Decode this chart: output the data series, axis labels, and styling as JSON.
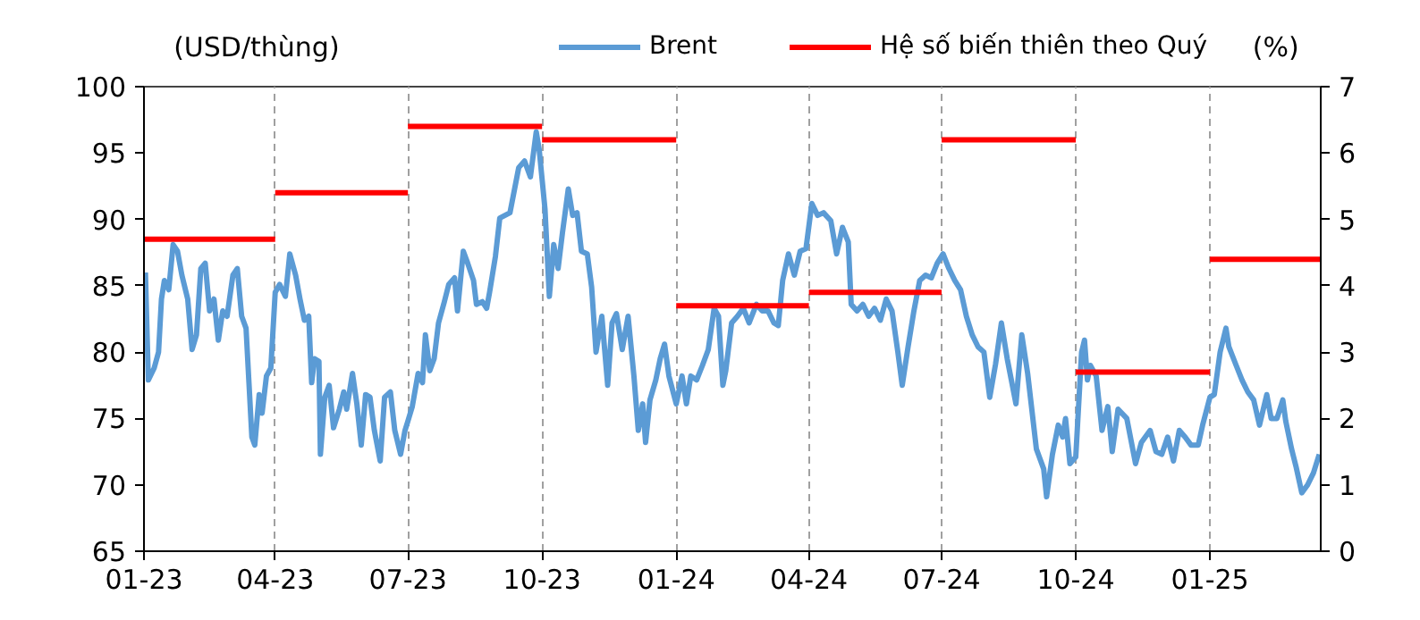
{
  "chart_data": {
    "type": "line",
    "ylabel": "(USD/thùng)",
    "y2label": "(%)",
    "xlim": [
      "2023-01-01",
      "2025-03-18"
    ],
    "xticks": [
      {
        "value": "2023-01-01",
        "label": "01-23"
      },
      {
        "value": "2023-04-01",
        "label": "04-23"
      },
      {
        "value": "2023-07-01",
        "label": "07-23"
      },
      {
        "value": "2023-10-01",
        "label": "10-23"
      },
      {
        "value": "2024-01-01",
        "label": "01-24"
      },
      {
        "value": "2024-04-01",
        "label": "04-24"
      },
      {
        "value": "2024-07-01",
        "label": "07-24"
      },
      {
        "value": "2024-10-01",
        "label": "10-24"
      },
      {
        "value": "2025-01-01",
        "label": "01-25"
      }
    ],
    "ylim": [
      65,
      100
    ],
    "yticks": [
      65,
      70,
      75,
      80,
      85,
      90,
      95,
      100
    ],
    "y2lim": [
      0,
      7
    ],
    "y2ticks": [
      0,
      1,
      2,
      3,
      4,
      5,
      6,
      7
    ],
    "grid": "x",
    "legend": "top",
    "line_style": "solid",
    "series": [
      {
        "name": "Brent",
        "color": "#5b9bd5",
        "x": [
          "2023-01-02",
          "2023-01-04",
          "2023-01-08",
          "2023-01-11",
          "2023-01-13",
          "2023-01-15",
          "2023-01-18",
          "2023-01-21",
          "2023-01-24",
          "2023-01-27",
          "2023-01-31",
          "2023-02-03",
          "2023-02-06",
          "2023-02-09",
          "2023-02-12",
          "2023-02-15",
          "2023-02-18",
          "2023-02-21",
          "2023-02-24",
          "2023-02-27",
          "2023-03-03",
          "2023-03-06",
          "2023-03-09",
          "2023-03-12",
          "2023-03-14",
          "2023-03-16",
          "2023-03-18",
          "2023-03-21",
          "2023-03-23",
          "2023-03-26",
          "2023-03-29",
          "2023-04-01",
          "2023-04-04",
          "2023-04-08",
          "2023-04-11",
          "2023-04-15",
          "2023-04-18",
          "2023-04-21",
          "2023-04-24",
          "2023-04-26",
          "2023-04-28",
          "2023-05-01",
          "2023-05-02",
          "2023-05-05",
          "2023-05-08",
          "2023-05-11",
          "2023-05-15",
          "2023-05-18",
          "2023-05-20",
          "2023-05-24",
          "2023-05-27",
          "2023-05-30",
          "2023-06-02",
          "2023-06-05",
          "2023-06-08",
          "2023-06-12",
          "2023-06-15",
          "2023-06-19",
          "2023-06-22",
          "2023-06-26",
          "2023-06-29",
          "2023-07-01",
          "2023-07-04",
          "2023-07-08",
          "2023-07-11",
          "2023-07-13",
          "2023-07-16",
          "2023-07-19",
          "2023-07-22",
          "2023-07-26",
          "2023-07-29",
          "2023-08-02",
          "2023-08-04",
          "2023-08-08",
          "2023-08-11",
          "2023-08-15",
          "2023-08-17",
          "2023-08-21",
          "2023-08-24",
          "2023-08-26",
          "2023-08-30",
          "2023-09-02",
          "2023-09-09",
          "2023-09-15",
          "2023-09-19",
          "2023-09-23",
          "2023-09-27",
          "2023-09-29",
          "2023-10-03",
          "2023-10-06",
          "2023-10-09",
          "2023-10-12",
          "2023-10-15",
          "2023-10-19",
          "2023-10-22",
          "2023-10-25",
          "2023-10-28",
          "2023-11-01",
          "2023-11-04",
          "2023-11-07",
          "2023-11-11",
          "2023-11-15",
          "2023-11-18",
          "2023-11-21",
          "2023-11-25",
          "2023-11-29",
          "2023-12-03",
          "2023-12-06",
          "2023-12-09",
          "2023-12-11",
          "2023-12-14",
          "2023-12-18",
          "2023-12-21",
          "2023-12-24",
          "2023-12-27",
          "2024-01-01",
          "2024-01-05",
          "2024-01-08",
          "2024-01-11",
          "2024-01-15",
          "2024-01-19",
          "2024-01-23",
          "2024-01-27",
          "2024-01-30",
          "2024-02-02",
          "2024-02-04",
          "2024-02-08",
          "2024-02-12",
          "2024-02-16",
          "2024-02-20",
          "2024-02-25",
          "2024-02-29",
          "2024-03-04",
          "2024-03-08",
          "2024-03-11",
          "2024-03-14",
          "2024-03-18",
          "2024-03-22",
          "2024-03-26",
          "2024-03-30",
          "2024-04-03",
          "2024-04-07",
          "2024-04-11",
          "2024-04-16",
          "2024-04-20",
          "2024-04-24",
          "2024-04-28",
          "2024-04-30",
          "2024-05-04",
          "2024-05-08",
          "2024-05-12",
          "2024-05-16",
          "2024-05-20",
          "2024-05-24",
          "2024-05-28",
          "2024-06-01",
          "2024-06-04",
          "2024-06-08",
          "2024-06-12",
          "2024-06-16",
          "2024-06-20",
          "2024-06-24",
          "2024-06-28",
          "2024-07-02",
          "2024-07-06",
          "2024-07-10",
          "2024-07-14",
          "2024-07-18",
          "2024-07-22",
          "2024-07-26",
          "2024-07-30",
          "2024-08-03",
          "2024-08-07",
          "2024-08-11",
          "2024-08-15",
          "2024-08-21",
          "2024-08-25",
          "2024-08-29",
          "2024-09-04",
          "2024-09-09",
          "2024-09-11",
          "2024-09-15",
          "2024-09-19",
          "2024-09-22",
          "2024-09-24",
          "2024-09-27",
          "2024-10-01",
          "2024-10-05",
          "2024-10-07",
          "2024-10-09",
          "2024-10-11",
          "2024-10-15",
          "2024-10-19",
          "2024-10-23",
          "2024-10-26",
          "2024-10-30",
          "2024-11-05",
          "2024-11-11",
          "2024-11-15",
          "2024-11-21",
          "2024-11-25",
          "2024-11-29",
          "2024-12-03",
          "2024-12-07",
          "2024-12-11",
          "2024-12-15",
          "2024-12-19",
          "2024-12-24",
          "2024-12-27",
          "2025-01-01",
          "2025-01-04",
          "2025-01-08",
          "2025-01-12",
          "2025-01-14",
          "2025-01-19",
          "2025-01-23",
          "2025-01-27",
          "2025-01-31",
          "2025-02-04",
          "2025-02-09",
          "2025-02-12",
          "2025-02-16",
          "2025-02-20",
          "2025-02-22",
          "2025-02-26",
          "2025-03-01",
          "2025-03-05",
          "2025-03-09",
          "2025-03-13",
          "2025-03-17"
        ],
        "values": [
          86.0,
          77.9,
          78.8,
          80,
          84,
          85.4,
          84.7,
          88.1,
          87.6,
          85.8,
          84,
          80.2,
          81.3,
          86.3,
          86.7,
          83.1,
          84,
          80.9,
          83.1,
          82.7,
          85.8,
          86.3,
          82.7,
          81.8,
          77.7,
          73.6,
          73,
          76.8,
          75.4,
          78.2,
          78.8,
          84.5,
          85.1,
          84.2,
          87.4,
          85.8,
          84,
          82.4,
          82.7,
          77.7,
          79.5,
          79.3,
          72.3,
          76.6,
          77.5,
          74.3,
          75.7,
          77,
          75.7,
          78.4,
          76.1,
          73,
          76.8,
          76.6,
          74.1,
          71.8,
          76.6,
          77,
          74.1,
          72.3,
          74.1,
          74.8,
          75.9,
          78.4,
          77.7,
          81.3,
          78.6,
          79.5,
          82.2,
          83.8,
          85.1,
          85.6,
          83.1,
          87.6,
          86.7,
          85.4,
          83.6,
          83.8,
          83.3,
          84.5,
          87.2,
          90.1,
          90.5,
          93.9,
          94.4,
          93.2,
          96.6,
          95.3,
          90.8,
          84.2,
          88.1,
          86.3,
          89,
          92.3,
          90.3,
          90.5,
          87.6,
          87.4,
          84.9,
          80,
          82.7,
          77.5,
          82.2,
          82.9,
          80.2,
          82.7,
          78.2,
          74.1,
          76.1,
          73.2,
          76.4,
          77.9,
          79.5,
          80.6,
          78.2,
          76.1,
          78.2,
          76.1,
          78.2,
          77.9,
          79,
          80.2,
          83.3,
          82.7,
          77.5,
          78.6,
          82.2,
          82.7,
          83.3,
          82.2,
          83.6,
          83.1,
          83.1,
          82.2,
          82,
          85.4,
          87.4,
          85.8,
          87.6,
          87.8,
          91.2,
          90.3,
          90.5,
          89.9,
          87.4,
          89.4,
          88.3,
          83.6,
          83.1,
          83.6,
          82.7,
          83.3,
          82.4,
          84,
          83.1,
          80,
          77.5,
          80.4,
          83.1,
          85.4,
          85.8,
          85.6,
          86.7,
          87.4,
          86.3,
          85.4,
          84.7,
          82.7,
          81.3,
          80.4,
          80,
          76.6,
          79.1,
          82.2,
          79.5,
          76.1,
          81.3,
          78.4,
          72.7,
          71.2,
          69.1,
          72.3,
          74.5,
          73.6,
          75,
          71.6,
          72.1,
          80,
          80.9,
          77.9,
          79,
          78.2,
          74.1,
          75.9,
          72.5,
          75.7,
          75,
          71.6,
          73.2,
          74.1,
          72.5,
          72.3,
          73.6,
          71.8,
          74.1,
          73.6,
          73,
          73,
          74.5,
          76.6,
          76.8,
          80,
          81.8,
          80.4,
          79,
          77.9,
          77,
          76.4,
          74.5,
          76.8,
          75,
          75,
          76.4,
          74.8,
          72.7,
          71.4,
          69.4,
          70,
          70.9,
          72.3
        ]
      },
      {
        "name": "Hệ số biến thiên theo Quý",
        "color": "#ff0000",
        "axis": "y2",
        "x": [
          "2023-01-01",
          "2023-04-01"
        ],
        "values": [
          4.7,
          4.7
        ]
      },
      {
        "color": "#ff0000",
        "axis": "y2",
        "x": [
          "2023-04-01",
          "2023-07-01"
        ],
        "values": [
          5.4,
          5.4
        ]
      },
      {
        "color": "#ff0000",
        "axis": "y2",
        "x": [
          "2023-07-01",
          "2023-10-01"
        ],
        "values": [
          6.4,
          6.4
        ]
      },
      {
        "color": "#ff0000",
        "axis": "y2",
        "x": [
          "2023-10-01",
          "2024-01-01"
        ],
        "values": [
          6.2,
          6.2
        ]
      },
      {
        "color": "#ff0000",
        "axis": "y2",
        "x": [
          "2024-01-01",
          "2024-04-01"
        ],
        "values": [
          3.7,
          3.7
        ]
      },
      {
        "color": "#ff0000",
        "axis": "y2",
        "x": [
          "2024-04-01",
          "2024-07-01"
        ],
        "values": [
          3.9,
          3.9
        ]
      },
      {
        "color": "#ff0000",
        "axis": "y2",
        "x": [
          "2024-07-01",
          "2024-10-01"
        ],
        "values": [
          6.2,
          6.2
        ]
      },
      {
        "color": "#ff0000",
        "axis": "y2",
        "x": [
          "2024-10-01",
          "2025-01-01"
        ],
        "values": [
          2.7,
          2.7
        ]
      },
      {
        "color": "#ff0000",
        "axis": "y2",
        "x": [
          "2025-01-01",
          "2025-03-18"
        ],
        "values": [
          4.4,
          4.4
        ]
      }
    ]
  }
}
